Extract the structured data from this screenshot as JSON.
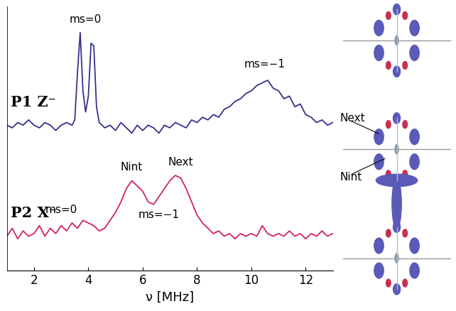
{
  "chart_data": {
    "type": "line",
    "x_label": "ν [MHz]",
    "xlim": [
      1,
      13
    ],
    "xticks": [
      2,
      4,
      6,
      8,
      10,
      12
    ],
    "ylim": [
      0,
      100
    ],
    "tick_labels": "x",
    "grid": false,
    "series": [
      {
        "name": "P1 Z⁻",
        "color": "#33338a",
        "x": [
          1.0,
          1.2,
          1.4,
          1.6,
          1.8,
          2.0,
          2.2,
          2.4,
          2.6,
          2.8,
          3.0,
          3.2,
          3.4,
          3.5,
          3.6,
          3.7,
          3.8,
          3.9,
          4.0,
          4.1,
          4.2,
          4.3,
          4.4,
          4.6,
          4.8,
          5.0,
          5.2,
          5.4,
          5.6,
          5.8,
          6.0,
          6.2,
          6.4,
          6.6,
          6.8,
          7.0,
          7.2,
          7.4,
          7.6,
          7.8,
          8.0,
          8.2,
          8.4,
          8.6,
          8.8,
          9.0,
          9.2,
          9.4,
          9.6,
          9.8,
          10.0,
          10.2,
          10.4,
          10.6,
          10.8,
          11.0,
          11.2,
          11.4,
          11.6,
          11.8,
          12.0,
          12.2,
          12.4,
          12.6,
          12.8,
          13.0
        ],
        "values": [
          55,
          54,
          56,
          55,
          57,
          55,
          54,
          56,
          55,
          53,
          55,
          56,
          55,
          57,
          75,
          90,
          68,
          60,
          66,
          86,
          85,
          62,
          56,
          54,
          55,
          53,
          56,
          54,
          52,
          55,
          53,
          55,
          54,
          52,
          55,
          54,
          56,
          55,
          54,
          57,
          56,
          58,
          57,
          59,
          58,
          61,
          62,
          64,
          65,
          67,
          68,
          70,
          71,
          72,
          69,
          68,
          65,
          66,
          62,
          63,
          59,
          58,
          56,
          57,
          55,
          56
        ]
      },
      {
        "name": "P2 X⁻",
        "color": "#d0245a",
        "x": [
          1.0,
          1.2,
          1.4,
          1.6,
          1.8,
          2.0,
          2.2,
          2.4,
          2.6,
          2.8,
          3.0,
          3.2,
          3.4,
          3.6,
          3.8,
          4.0,
          4.2,
          4.4,
          4.6,
          4.8,
          5.0,
          5.2,
          5.4,
          5.6,
          5.8,
          6.0,
          6.2,
          6.4,
          6.6,
          6.8,
          7.0,
          7.2,
          7.4,
          7.6,
          7.8,
          8.0,
          8.2,
          8.4,
          8.6,
          8.8,
          9.0,
          9.2,
          9.4,
          9.6,
          9.8,
          10.0,
          10.2,
          10.4,
          10.6,
          10.8,
          11.0,
          11.2,
          11.4,
          11.6,
          11.8,
          12.0,
          12.2,
          12.4,
          12.6,
          12.8,
          13.0
        ],
        "values": [
          13,
          16,
          12,
          15,
          13,
          14,
          17,
          13,
          16,
          14,
          17,
          15,
          18,
          16,
          19,
          18,
          17,
          15,
          16,
          19,
          22,
          26,
          31,
          34,
          32,
          30,
          26,
          25,
          28,
          31,
          34,
          36,
          35,
          31,
          26,
          21,
          18,
          16,
          14,
          15,
          13,
          14,
          12,
          14,
          13,
          14,
          13,
          17,
          14,
          13,
          14,
          13,
          15,
          13,
          14,
          12,
          14,
          13,
          15,
          13,
          14
        ]
      }
    ],
    "annotations": [
      {
        "text": "ms=0",
        "x": 3.9,
        "y": 93
      },
      {
        "text": "ms=−1",
        "x": 10.5,
        "y": 76
      },
      {
        "text": "ms=0",
        "x": 3.0,
        "y": 21
      },
      {
        "text": "Nint",
        "x": 5.6,
        "y": 37
      },
      {
        "text": "Next",
        "x": 7.4,
        "y": 39
      },
      {
        "text": "ms=−1",
        "x": 6.6,
        "y": 19
      }
    ],
    "structure_labels": [
      "Next",
      "Nint"
    ]
  }
}
